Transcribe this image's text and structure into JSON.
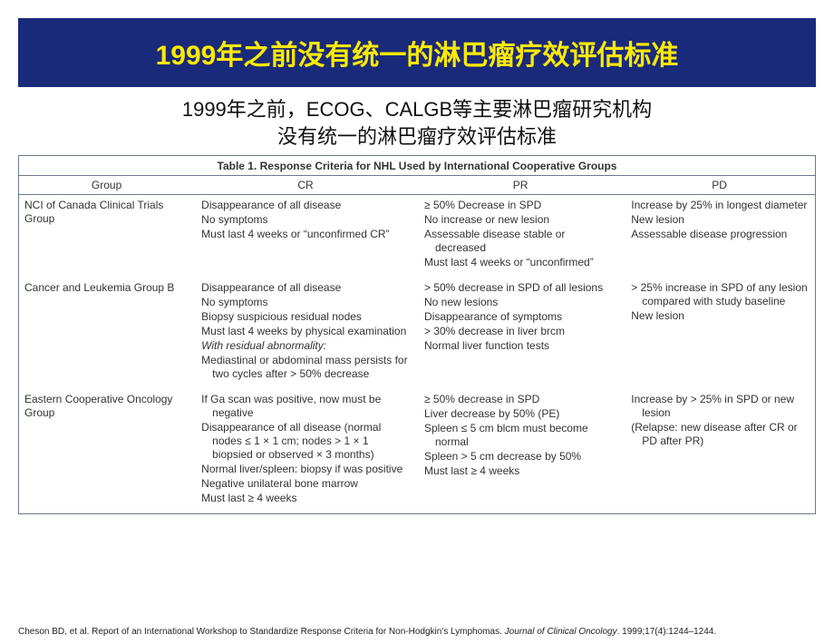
{
  "colors": {
    "banner_bg": "#1a2a7a",
    "banner_text": "#ffea00",
    "subtitle_text": "#111111",
    "table_border": "#6b7a8f",
    "table_text": "#333333",
    "citation_text": "#222222"
  },
  "fonts": {
    "title_size": 30,
    "subtitle_size": 22,
    "table_caption_size": 12,
    "table_header_size": 12,
    "table_body_size": 12,
    "citation_size": 10
  },
  "title": "1999年之前没有统一的淋巴瘤疗效评估标准",
  "subtitle_line1": "1999年之前，ECOG、CALGB等主要淋巴瘤研究机构",
  "subtitle_line2": "没有统一的淋巴瘤疗效评估标准",
  "table": {
    "caption": "Table 1. Response Criteria for NHL Used by International Cooperative Groups",
    "columns": [
      "Group",
      "CR",
      "PR",
      "PD"
    ],
    "col_widths_pct": [
      22,
      28,
      26,
      24
    ],
    "rows": [
      {
        "group": "NCI of Canada Clinical Trials Group",
        "cr": [
          {
            "t": "Disappearance of all disease"
          },
          {
            "t": "No symptoms"
          },
          {
            "t": "Must last 4 weeks or “unconfirmed CR”"
          }
        ],
        "pr": [
          {
            "t": "≥ 50% Decrease in SPD"
          },
          {
            "t": "No increase or new lesion"
          },
          {
            "t": "Assessable disease stable or decreased"
          },
          {
            "t": "Must last 4 weeks or “unconfirmed”"
          }
        ],
        "pd": [
          {
            "t": "Increase by 25% in longest diameter"
          },
          {
            "t": "New lesion"
          },
          {
            "t": "Assessable disease progression"
          }
        ]
      },
      {
        "group": "Cancer and Leukemia Group B",
        "cr": [
          {
            "t": "Disappearance of all disease"
          },
          {
            "t": "No symptoms"
          },
          {
            "t": "Biopsy suspicious residual nodes"
          },
          {
            "t": "Must last 4 weeks by physical examination"
          },
          {
            "t": "With residual abnormality:",
            "italic": true
          },
          {
            "t": "Mediastinal or abdominal mass persists for two cycles after > 50% decrease"
          }
        ],
        "pr": [
          {
            "t": "> 50% decrease in SPD of all lesions"
          },
          {
            "t": "No new lesions"
          },
          {
            "t": "Disappearance of symptoms"
          },
          {
            "t": "> 30% decrease in liver brcm"
          },
          {
            "t": "Normal liver function tests"
          }
        ],
        "pd": [
          {
            "t": "> 25% increase in SPD of any lesion compared with study baseline"
          },
          {
            "t": "New lesion"
          }
        ]
      },
      {
        "group": "Eastern Cooperative Oncology Group",
        "cr": [
          {
            "t": "If Ga scan was positive, now must be negative"
          },
          {
            "t": "Disappearance of all disease (normal nodes ≤ 1 × 1 cm; nodes > 1 × 1 biopsied or observed × 3 months)"
          },
          {
            "t": "Normal liver/spleen: biopsy if was positive"
          },
          {
            "t": "Negative unilateral bone marrow"
          },
          {
            "t": "Must last ≥ 4 weeks"
          }
        ],
        "pr": [
          {
            "t": "≥ 50% decrease in SPD"
          },
          {
            "t": "Liver decrease by 50% (PE)"
          },
          {
            "t": "Spleen ≤ 5 cm blcm must become normal"
          },
          {
            "t": "Spleen > 5 cm decrease by 50%"
          },
          {
            "t": "Must last ≥ 4 weeks"
          }
        ],
        "pd": [
          {
            "t": "Increase by > 25% in SPD or new lesion"
          },
          {
            "t": "(Relapse: new disease after CR or PD after PR)"
          }
        ]
      }
    ]
  },
  "citation": {
    "prefix": "Cheson BD, et al. Report of an International Workshop to Standardize Response Criteria for Non-Hodgkin's Lymphomas. ",
    "journal": "Journal of Clinical Oncology",
    "suffix": ". 1999;17(4):1244–1244."
  }
}
